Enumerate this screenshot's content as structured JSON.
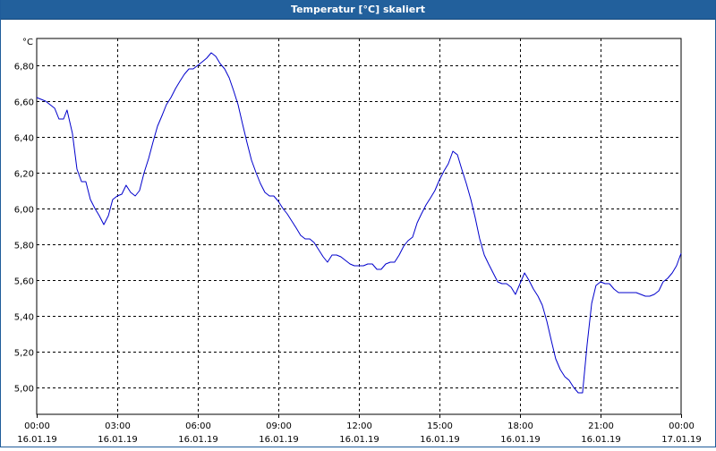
{
  "window": {
    "title": "Temperatur [°C] skaliert"
  },
  "chart_data": {
    "type": "line",
    "title": "Temperatur [°C] skaliert",
    "unit_label": "°C",
    "ylim": [
      4.85,
      6.95
    ],
    "y_ticks": [
      "5,00",
      "5,20",
      "5,40",
      "5,60",
      "5,80",
      "6,00",
      "6,20",
      "6,40",
      "6,60",
      "6,80"
    ],
    "y_tick_values": [
      5.0,
      5.2,
      5.4,
      5.6,
      5.8,
      6.0,
      6.2,
      6.4,
      6.6,
      6.8
    ],
    "xlim_hours": [
      0,
      24
    ],
    "x_ticks": [
      {
        "time": "00:00",
        "date": "16.01.19"
      },
      {
        "time": "03:00",
        "date": "16.01.19"
      },
      {
        "time": "06:00",
        "date": "16.01.19"
      },
      {
        "time": "09:00",
        "date": "16.01.19"
      },
      {
        "time": "12:00",
        "date": "16.01.19"
      },
      {
        "time": "15:00",
        "date": "16.01.19"
      },
      {
        "time": "18:00",
        "date": "16.01.19"
      },
      {
        "time": "21:00",
        "date": "16.01.19"
      },
      {
        "time": "00:00",
        "date": "17.01.19"
      }
    ],
    "grid": true,
    "line_color": "#0000cc",
    "series": [
      {
        "points": [
          [
            0.0,
            6.62
          ],
          [
            0.33,
            6.6
          ],
          [
            0.67,
            6.56
          ],
          [
            0.83,
            6.5
          ],
          [
            1.0,
            6.5
          ],
          [
            1.13,
            6.55
          ],
          [
            1.33,
            6.42
          ],
          [
            1.5,
            6.22
          ],
          [
            1.67,
            6.15
          ],
          [
            1.83,
            6.15
          ],
          [
            2.0,
            6.05
          ],
          [
            2.17,
            6.0
          ],
          [
            2.33,
            5.96
          ],
          [
            2.5,
            5.91
          ],
          [
            2.67,
            5.96
          ],
          [
            2.83,
            6.05
          ],
          [
            3.0,
            6.07
          ],
          [
            3.17,
            6.08
          ],
          [
            3.33,
            6.13
          ],
          [
            3.5,
            6.09
          ],
          [
            3.67,
            6.07
          ],
          [
            3.83,
            6.1
          ],
          [
            4.0,
            6.2
          ],
          [
            4.17,
            6.28
          ],
          [
            4.33,
            6.37
          ],
          [
            4.5,
            6.46
          ],
          [
            4.67,
            6.52
          ],
          [
            4.83,
            6.58
          ],
          [
            5.0,
            6.62
          ],
          [
            5.17,
            6.67
          ],
          [
            5.33,
            6.71
          ],
          [
            5.5,
            6.75
          ],
          [
            5.67,
            6.78
          ],
          [
            5.83,
            6.78
          ],
          [
            6.0,
            6.8
          ],
          [
            6.17,
            6.82
          ],
          [
            6.33,
            6.84
          ],
          [
            6.5,
            6.87
          ],
          [
            6.67,
            6.85
          ],
          [
            6.83,
            6.81
          ],
          [
            7.0,
            6.78
          ],
          [
            7.17,
            6.73
          ],
          [
            7.33,
            6.66
          ],
          [
            7.5,
            6.58
          ],
          [
            7.67,
            6.47
          ],
          [
            7.83,
            6.37
          ],
          [
            8.0,
            6.27
          ],
          [
            8.17,
            6.2
          ],
          [
            8.33,
            6.14
          ],
          [
            8.5,
            6.09
          ],
          [
            8.67,
            6.07
          ],
          [
            8.83,
            6.07
          ],
          [
            9.0,
            6.04
          ],
          [
            9.17,
            6.0
          ],
          [
            9.33,
            5.97
          ],
          [
            9.5,
            5.93
          ],
          [
            9.67,
            5.89
          ],
          [
            9.83,
            5.85
          ],
          [
            10.0,
            5.83
          ],
          [
            10.17,
            5.83
          ],
          [
            10.33,
            5.81
          ],
          [
            10.5,
            5.77
          ],
          [
            10.67,
            5.73
          ],
          [
            10.83,
            5.7
          ],
          [
            11.0,
            5.74
          ],
          [
            11.17,
            5.74
          ],
          [
            11.33,
            5.73
          ],
          [
            11.5,
            5.71
          ],
          [
            11.67,
            5.69
          ],
          [
            11.83,
            5.68
          ],
          [
            12.0,
            5.68
          ],
          [
            12.17,
            5.68
          ],
          [
            12.33,
            5.69
          ],
          [
            12.5,
            5.69
          ],
          [
            12.67,
            5.66
          ],
          [
            12.83,
            5.66
          ],
          [
            13.0,
            5.69
          ],
          [
            13.17,
            5.7
          ],
          [
            13.33,
            5.7
          ],
          [
            13.5,
            5.74
          ],
          [
            13.67,
            5.79
          ],
          [
            13.83,
            5.82
          ],
          [
            14.0,
            5.84
          ],
          [
            14.17,
            5.92
          ],
          [
            14.33,
            5.97
          ],
          [
            14.5,
            6.02
          ],
          [
            14.67,
            6.06
          ],
          [
            14.83,
            6.1
          ],
          [
            15.0,
            6.16
          ],
          [
            15.17,
            6.21
          ],
          [
            15.33,
            6.25
          ],
          [
            15.5,
            6.32
          ],
          [
            15.67,
            6.3
          ],
          [
            15.83,
            6.22
          ],
          [
            16.0,
            6.14
          ],
          [
            16.17,
            6.05
          ],
          [
            16.33,
            5.95
          ],
          [
            16.5,
            5.83
          ],
          [
            16.67,
            5.74
          ],
          [
            16.83,
            5.69
          ],
          [
            17.0,
            5.64
          ],
          [
            17.17,
            5.59
          ],
          [
            17.33,
            5.58
          ],
          [
            17.5,
            5.58
          ],
          [
            17.67,
            5.56
          ],
          [
            17.83,
            5.52
          ],
          [
            18.0,
            5.58
          ],
          [
            18.17,
            5.64
          ],
          [
            18.33,
            5.6
          ],
          [
            18.5,
            5.55
          ],
          [
            18.67,
            5.51
          ],
          [
            18.83,
            5.46
          ],
          [
            19.0,
            5.37
          ],
          [
            19.17,
            5.26
          ],
          [
            19.33,
            5.16
          ],
          [
            19.5,
            5.1
          ],
          [
            19.67,
            5.06
          ],
          [
            19.83,
            5.04
          ],
          [
            20.0,
            5.0
          ],
          [
            20.17,
            4.97
          ],
          [
            20.33,
            4.97
          ],
          [
            20.5,
            5.24
          ],
          [
            20.67,
            5.47
          ],
          [
            20.83,
            5.57
          ],
          [
            21.0,
            5.59
          ],
          [
            21.17,
            5.58
          ],
          [
            21.33,
            5.58
          ],
          [
            21.5,
            5.55
          ],
          [
            21.67,
            5.53
          ],
          [
            21.83,
            5.53
          ],
          [
            22.0,
            5.53
          ],
          [
            22.17,
            5.53
          ],
          [
            22.33,
            5.53
          ],
          [
            22.5,
            5.52
          ],
          [
            22.67,
            5.51
          ],
          [
            22.83,
            5.51
          ],
          [
            23.0,
            5.52
          ],
          [
            23.17,
            5.54
          ],
          [
            23.33,
            5.59
          ],
          [
            23.5,
            5.61
          ],
          [
            23.67,
            5.64
          ],
          [
            23.83,
            5.68
          ],
          [
            24.0,
            5.75
          ]
        ]
      }
    ]
  }
}
